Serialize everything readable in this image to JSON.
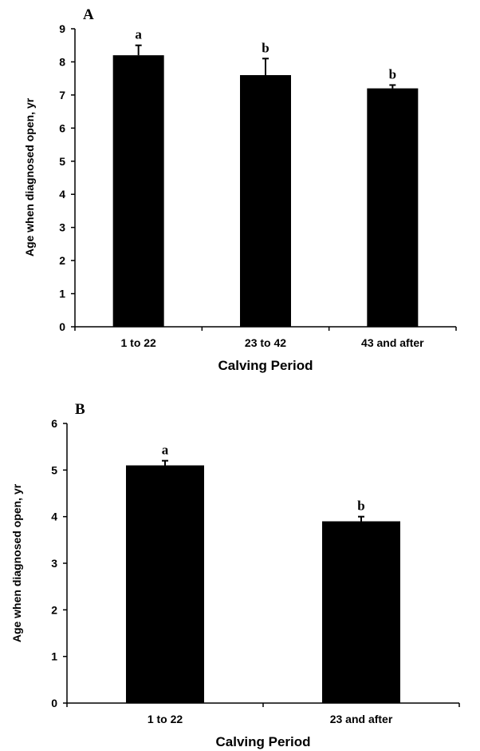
{
  "chart_data": [
    {
      "type": "bar",
      "panel_label": "A",
      "categories": [
        "1 to 22",
        "23 to 42",
        "43 and after"
      ],
      "values": [
        8.2,
        7.6,
        7.2
      ],
      "errors": [
        0.3,
        0.5,
        0.1
      ],
      "significance": [
        "a",
        "b",
        "b"
      ],
      "xlabel": "Calving Period",
      "ylabel": "Age when diagnosed open,  yr",
      "ylim": [
        0,
        9
      ],
      "yticks": [
        "0",
        "1",
        "2",
        "3",
        "4",
        "5",
        "6",
        "7",
        "8",
        "9"
      ],
      "grid": false,
      "bar_color": "#000000"
    },
    {
      "type": "bar",
      "panel_label": "B",
      "categories": [
        "1 to 22",
        "23 and after"
      ],
      "values": [
        5.1,
        3.9
      ],
      "errors": [
        0.1,
        0.1
      ],
      "significance": [
        "a",
        "b"
      ],
      "xlabel": "Calving Period",
      "ylabel": "Age when diagnosed open,  yr",
      "ylim": [
        0,
        6
      ],
      "yticks": [
        "0",
        "1",
        "2",
        "3",
        "4",
        "5",
        "6"
      ],
      "grid": false,
      "bar_color": "#000000"
    }
  ]
}
